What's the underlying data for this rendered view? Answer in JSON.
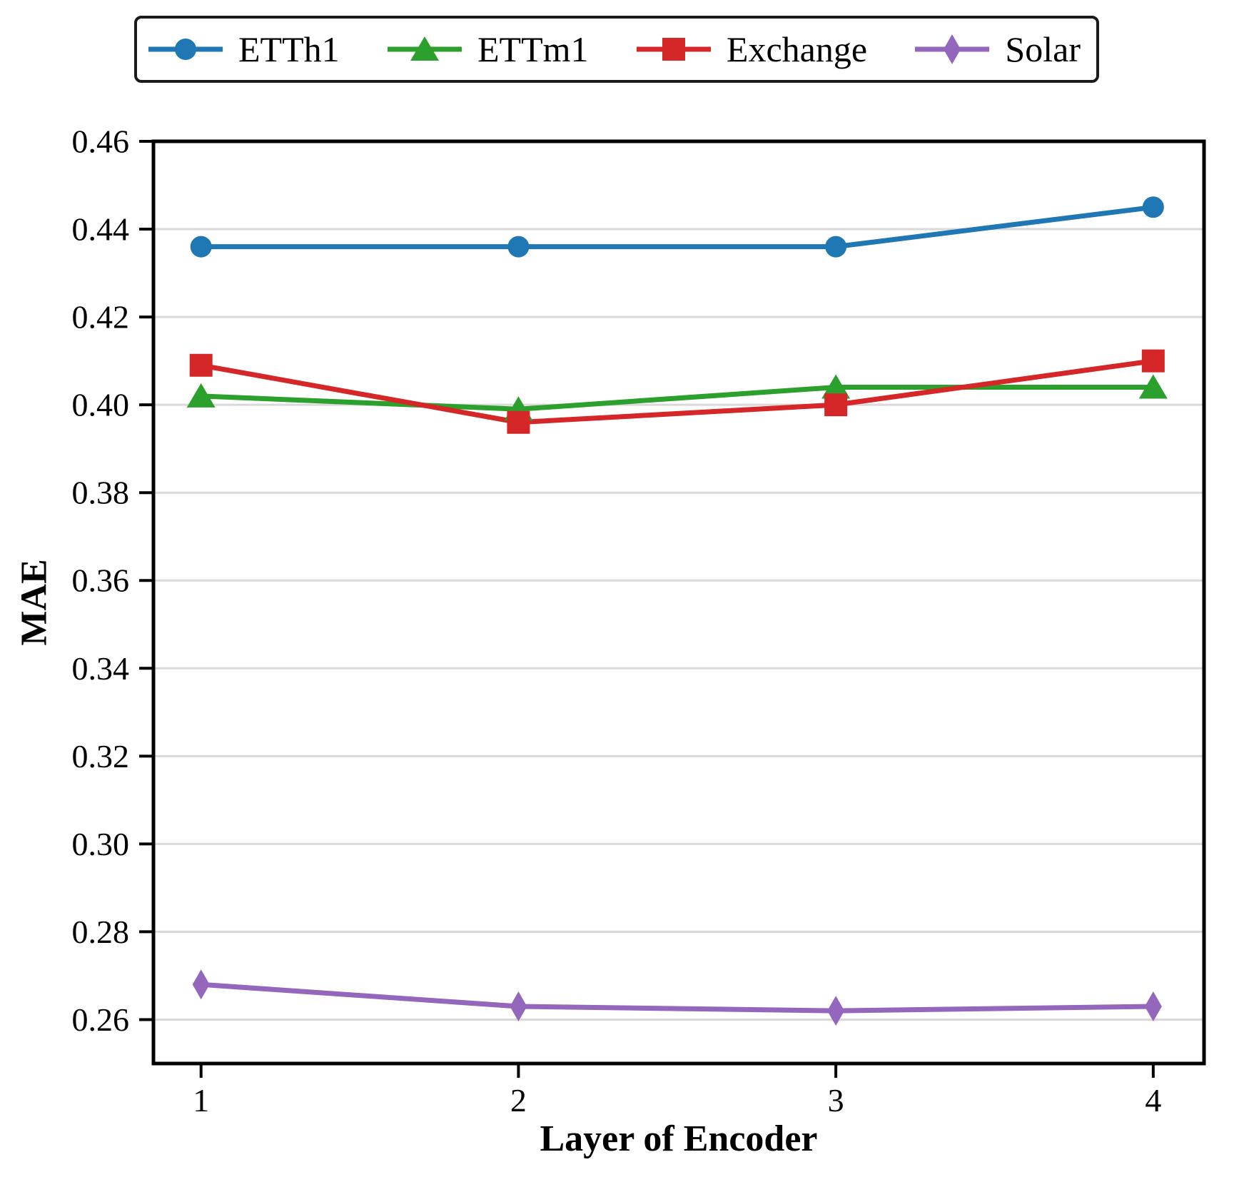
{
  "chart_data": {
    "type": "line",
    "title": "",
    "xlabel": "Layer of Encoder",
    "ylabel": "MAE",
    "x": [
      1,
      2,
      3,
      4
    ],
    "xtick_labels": [
      "1",
      "2",
      "3",
      "4"
    ],
    "ytick_values": [
      0.26,
      0.28,
      0.3,
      0.32,
      0.34,
      0.36,
      0.38,
      0.4,
      0.42,
      0.44,
      0.46
    ],
    "xlim": [
      0.85,
      4.16
    ],
    "ylim": [
      0.25,
      0.46
    ],
    "grid": true,
    "legend_position": "top",
    "series": [
      {
        "name": "ETTh1",
        "color": "#1f77b4",
        "marker": "circle",
        "values": [
          0.436,
          0.436,
          0.436,
          0.445
        ]
      },
      {
        "name": "ETTm1",
        "color": "#2ca02c",
        "marker": "triangle",
        "values": [
          0.402,
          0.399,
          0.404,
          0.404
        ]
      },
      {
        "name": "Exchange",
        "color": "#d62728",
        "marker": "square",
        "values": [
          0.409,
          0.396,
          0.4,
          0.41
        ]
      },
      {
        "name": "Solar",
        "color": "#9467bd",
        "marker": "diamond",
        "values": [
          0.268,
          0.263,
          0.262,
          0.263
        ]
      }
    ]
  },
  "colors": {
    "grid": "#d9d9d9",
    "spine": "#000000",
    "legend_border": "#1a1a1a",
    "background": "#ffffff"
  }
}
